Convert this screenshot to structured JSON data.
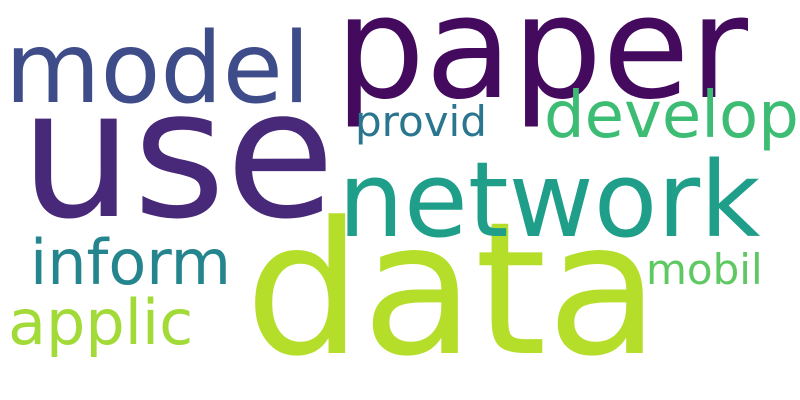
{
  "words": [
    {
      "text": "paper",
      "color": "#440a5e"
    },
    {
      "text": "use",
      "color": "#482878"
    },
    {
      "text": "data",
      "color": "#b5de2b"
    },
    {
      "text": "network",
      "color": "#1f9e89"
    },
    {
      "text": "model",
      "color": "#3e4c8a"
    },
    {
      "text": "develop",
      "color": "#3dbc74"
    },
    {
      "text": "inform",
      "color": "#25858e"
    },
    {
      "text": "applic",
      "color": "#a2da37"
    },
    {
      "text": "provid",
      "color": "#2a768e"
    },
    {
      "text": "mobil",
      "color": "#5ec962"
    }
  ]
}
